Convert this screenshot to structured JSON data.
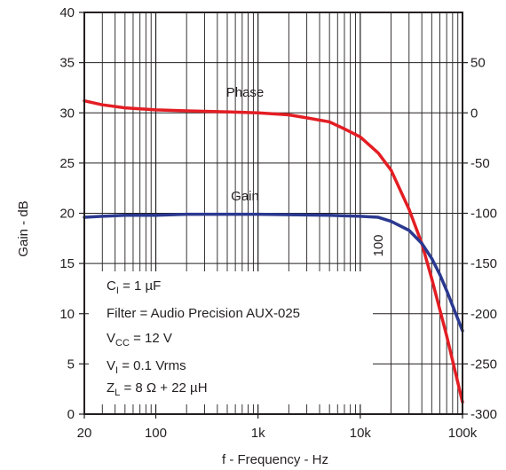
{
  "chart_data": {
    "type": "line",
    "x_axis": {
      "label": "f - Frequency - Hz",
      "scale": "log",
      "range": [
        20,
        100000
      ],
      "ticks": [
        {
          "value": 20,
          "label": "20"
        },
        {
          "value": 100,
          "label": "100"
        },
        {
          "value": 1000,
          "label": "1k"
        },
        {
          "value": 10000,
          "label": "10k"
        },
        {
          "value": 100000,
          "label": "100k"
        }
      ]
    },
    "y_axis_left": {
      "label": "Gain - dB",
      "range": [
        0,
        40
      ],
      "ticks": [
        "0",
        "5",
        "10",
        "15",
        "20",
        "25",
        "30",
        "35",
        "40"
      ]
    },
    "y_axis_right": {
      "label": "",
      "range": [
        -300,
        100
      ],
      "ticks": [
        "-300",
        "-250",
        "-200",
        "-150",
        "-100",
        "-50",
        "0",
        "50"
      ]
    },
    "grid": true,
    "series": [
      {
        "name": "Phase",
        "axis": "right",
        "color": "#e31e24",
        "points": [
          [
            20,
            12
          ],
          [
            30,
            8
          ],
          [
            50,
            5
          ],
          [
            100,
            3
          ],
          [
            200,
            2
          ],
          [
            500,
            1
          ],
          [
            1000,
            0
          ],
          [
            2000,
            -2
          ],
          [
            3000,
            -5
          ],
          [
            5000,
            -9
          ],
          [
            7000,
            -16
          ],
          [
            10000,
            -24
          ],
          [
            15000,
            -40
          ],
          [
            20000,
            -57
          ],
          [
            30000,
            -96
          ],
          [
            40000,
            -130
          ],
          [
            50000,
            -165
          ],
          [
            70000,
            -222
          ],
          [
            100000,
            -288
          ]
        ]
      },
      {
        "name": "Gain",
        "axis": "left",
        "color": "#2b3990",
        "points": [
          [
            20,
            19.6
          ],
          [
            30,
            19.7
          ],
          [
            50,
            19.8
          ],
          [
            100,
            19.8
          ],
          [
            200,
            19.9
          ],
          [
            1000,
            19.9
          ],
          [
            5000,
            19.8
          ],
          [
            10000,
            19.7
          ],
          [
            15000,
            19.6
          ],
          [
            20000,
            19.2
          ],
          [
            30000,
            18.3
          ],
          [
            40000,
            17.0
          ],
          [
            50000,
            15.5
          ],
          [
            60000,
            13.9
          ],
          [
            70000,
            12.3
          ],
          [
            80000,
            10.8
          ],
          [
            100000,
            8.3
          ]
        ]
      }
    ],
    "annotations": {
      "phase_label": "Phase",
      "gain_label": "Gain",
      "vertical_label": "100",
      "ci_main": "C",
      "ci_sub": "I",
      "ci_value": " = 1 µF",
      "filter": "Filter = Audio Precision AUX-025",
      "vcc_main": "V",
      "vcc_sub": "CC",
      "vcc_value": " = 12 V",
      "vi_main": "V",
      "vi_sub": "I",
      "vi_value": " = 0.1 Vrms",
      "zl_main": "Z",
      "zl_sub": "L",
      "zl_value": " = 8 Ω + 22 µH"
    }
  }
}
